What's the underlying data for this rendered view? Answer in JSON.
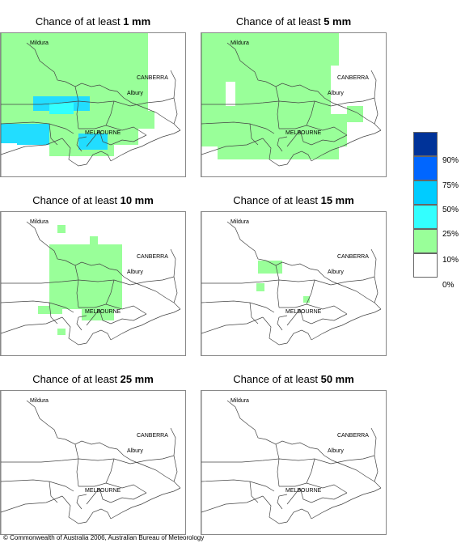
{
  "panels": [
    {
      "prefix": "Chance of at least ",
      "amount": "1 mm",
      "coverage": "high"
    },
    {
      "prefix": "Chance of at least ",
      "amount": "5 mm",
      "coverage": "broad"
    },
    {
      "prefix": "Chance of at least ",
      "amount": "10 mm",
      "coverage": "moderate"
    },
    {
      "prefix": "Chance of at least ",
      "amount": "15 mm",
      "coverage": "sparse"
    },
    {
      "prefix": "Chance of at least ",
      "amount": "25 mm",
      "coverage": "none"
    },
    {
      "prefix": "Chance of at least ",
      "amount": "50 mm",
      "coverage": "none"
    }
  ],
  "places": {
    "mildura": "Mildura",
    "canberra": "CANBERRA",
    "albury": "Albury",
    "melbourne": "MELBOURNE"
  },
  "legend": {
    "labels": [
      "90%",
      "75%",
      "50%",
      "25%",
      "10%",
      "0%"
    ],
    "colors": [
      "#003399",
      "#0066ff",
      "#00ccff",
      "#33ffff",
      "#99ff99",
      "#ffffff"
    ]
  },
  "copyright": "© Commonwealth of Australia 2006, Australian Bureau of Meteorology"
}
